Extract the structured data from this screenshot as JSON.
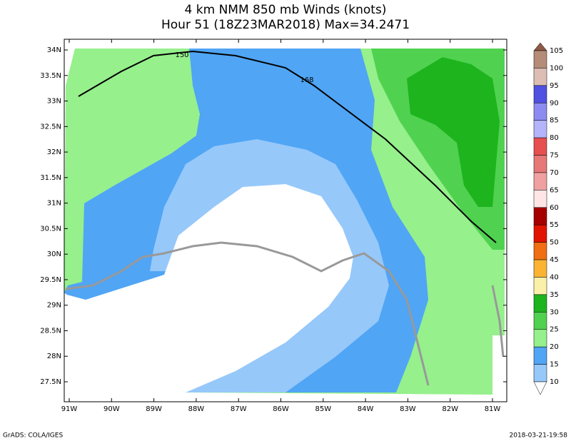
{
  "title": {
    "line1": "4 km NMM 850 mb Winds (knots)",
    "line2": "Hour 51 (18Z23MAR2018) Max=34.2471"
  },
  "axes": {
    "lat_labels": [
      "34N",
      "33.5N",
      "33N",
      "32.5N",
      "32N",
      "31.5N",
      "31N",
      "30.5N",
      "30N",
      "29.5N",
      "29N",
      "28.5N",
      "28N",
      "27.5N"
    ],
    "lon_labels": [
      "91W",
      "90W",
      "89W",
      "88W",
      "87W",
      "86W",
      "85W",
      "84W",
      "83W",
      "82W",
      "81W"
    ]
  },
  "colorbar": {
    "labels": [
      "105",
      "100",
      "95",
      "90",
      "85",
      "80",
      "75",
      "70",
      "65",
      "60",
      "55",
      "50",
      "45",
      "40",
      "35",
      "30",
      "25",
      "20",
      "15",
      "10"
    ],
    "colors": [
      "#8c5a46",
      "#b48c78",
      "#dcbeb4",
      "#5050e1",
      "#8c8cf0",
      "#b4b4fa",
      "#e65050",
      "#e67878",
      "#f0a0a0",
      "#ffe6e6",
      "#a50000",
      "#e11400",
      "#f06e14",
      "#fab432",
      "#faf0aa",
      "#1eb41e",
      "#50d250",
      "#96f08c",
      "#50a5f5",
      "#96c8fa",
      "#ffffff"
    ]
  },
  "map_labels": [
    "150",
    "168"
  ],
  "footer": {
    "left": "GrADS: COLA/IGES",
    "right": "2018-03-21-19:58"
  }
}
